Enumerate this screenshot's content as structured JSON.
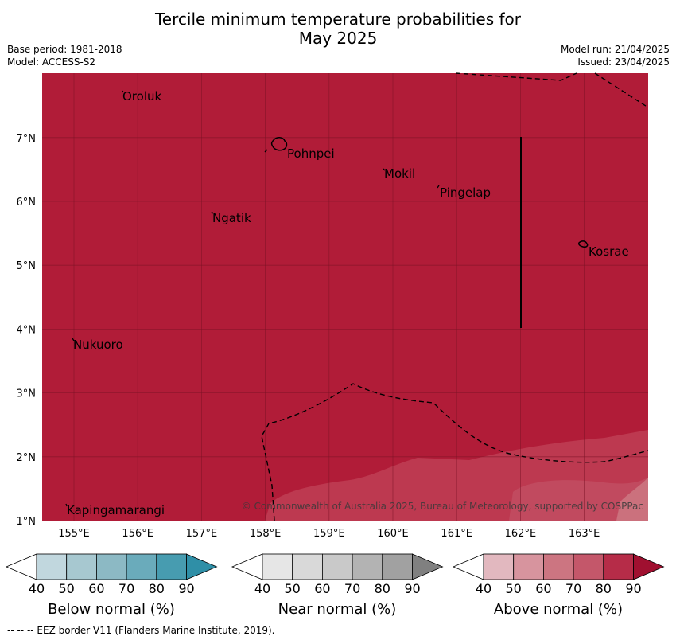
{
  "header": {
    "title_line1": "Tercile minimum temperature probabilities for",
    "title_line2": "May 2025",
    "base_period": "Base period: 1981-2018",
    "model": "Model: ACCESS-S2",
    "model_run": "Model run: 21/04/2025",
    "issued": "Issued: 23/04/2025"
  },
  "map": {
    "lat_labels": [
      "1°N",
      "2°N",
      "3°N",
      "4°N",
      "5°N",
      "6°N",
      "7°N"
    ],
    "lon_labels": [
      "155°E",
      "156°E",
      "157°E",
      "158°E",
      "159°E",
      "160°E",
      "161°E",
      "162°E",
      "163°E"
    ],
    "places": [
      {
        "name": "Oroluk"
      },
      {
        "name": "Pohnpei"
      },
      {
        "name": "Mokil"
      },
      {
        "name": "Pingelap"
      },
      {
        "name": "Ngatik"
      },
      {
        "name": "Kosrae"
      },
      {
        "name": "Nukuoro"
      },
      {
        "name": "Kapingamarangi"
      }
    ],
    "copyright": "© Commonwealth of Australia 2025, Bureau of Meteorology, supported by COSPPac",
    "colors": {
      "above_90": "#b11c38",
      "above_80": "#bd3950",
      "above_70": "#c95a6b"
    }
  },
  "colorbars": [
    {
      "label": "Below normal (%)",
      "ticks": [
        "40",
        "50",
        "60",
        "70",
        "80",
        "90"
      ],
      "colors": [
        "#ffffff",
        "#c1d7de",
        "#a7c8d0",
        "#8cb9c4",
        "#6aabbb",
        "#479cb0",
        "#2f8fa7"
      ]
    },
    {
      "label": "Near normal (%)",
      "ticks": [
        "40",
        "50",
        "60",
        "70",
        "80",
        "90"
      ],
      "colors": [
        "#ffffff",
        "#e6e6e6",
        "#d9d9d9",
        "#c9c9c9",
        "#b3b3b3",
        "#a1a1a1",
        "#808080"
      ]
    },
    {
      "label": "Above normal (%)",
      "ticks": [
        "40",
        "50",
        "60",
        "70",
        "80",
        "90"
      ],
      "colors": [
        "#ffffff",
        "#e2b8bf",
        "#d7949e",
        "#cc7581",
        "#c4576a",
        "#b62c48",
        "#a01030"
      ]
    }
  ],
  "footer": {
    "legend_text": "--  --  -- EEZ border V11 (Flanders Marine Institute, 2019)."
  }
}
